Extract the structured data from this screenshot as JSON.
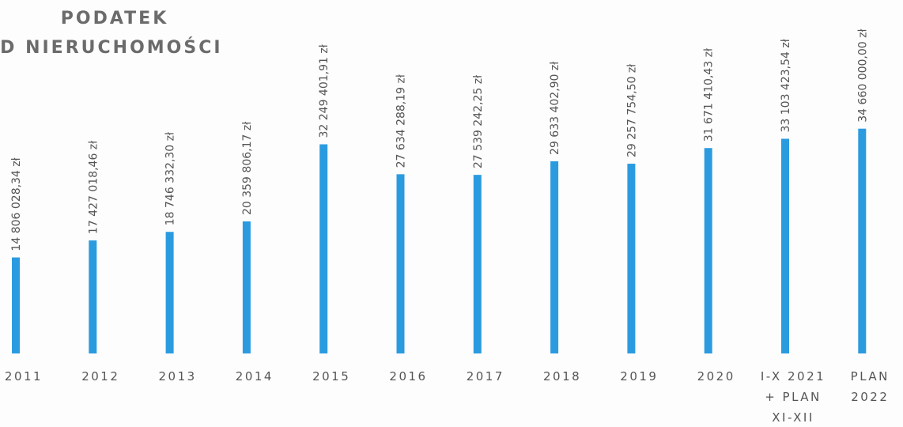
{
  "chart_data": {
    "type": "bar",
    "title": [
      "PODATEK",
      "OD NIERUCHOMOŚCI"
    ],
    "categories": [
      [
        "2011"
      ],
      [
        "2012"
      ],
      [
        "2013"
      ],
      [
        "2014"
      ],
      [
        "2015"
      ],
      [
        "2016"
      ],
      [
        "2017"
      ],
      [
        "2018"
      ],
      [
        "2019"
      ],
      [
        "2020"
      ],
      [
        "I-X 2021",
        "+ PLAN",
        "XI-XII"
      ],
      [
        "PLAN",
        "2022"
      ]
    ],
    "values": [
      14806028.34,
      17427018.46,
      18746332.3,
      20359806.17,
      32249401.91,
      27634288.19,
      27539242.25,
      29633402.9,
      29257754.5,
      31671410.43,
      33103423.54,
      34660000.0
    ],
    "value_labels": [
      "14 806 028,34 zł",
      "17 427 018,46 zł",
      "18 746 332,30 zł",
      "20 359 806,17 zł",
      "32 249 401,91 zł",
      "27 634 288,19 zł",
      "27 539 242,25 zł",
      "29 633 402,90 zł",
      "29 257 754,50 zł",
      "31 671 410,43 zł",
      "33 103 423,54 zł",
      "34 660 000,00 zł"
    ],
    "color": "#2b9be0",
    "ylim": [
      0,
      54500000
    ],
    "grid": false
  }
}
